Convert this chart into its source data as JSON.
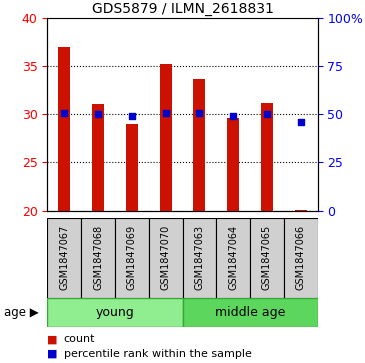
{
  "title": "GDS5879 / ILMN_2618831",
  "samples": [
    "GSM1847067",
    "GSM1847068",
    "GSM1847069",
    "GSM1847070",
    "GSM1847063",
    "GSM1847064",
    "GSM1847065",
    "GSM1847066"
  ],
  "count_values": [
    37.0,
    31.1,
    29.0,
    35.2,
    33.7,
    29.6,
    31.2,
    20.1
  ],
  "percentile_values": [
    50.5,
    50.0,
    49.0,
    50.5,
    50.5,
    49.0,
    50.0,
    46.0
  ],
  "ylim_left": [
    20,
    40
  ],
  "ylim_right": [
    0,
    100
  ],
  "yticks_left": [
    20,
    25,
    30,
    35,
    40
  ],
  "yticks_right": [
    0,
    25,
    50,
    75,
    100
  ],
  "bar_color": "#cc1100",
  "dot_color": "#0000cc",
  "bar_width": 0.35,
  "bar_bottom": 20,
  "group_young_indices": [
    0,
    1,
    2,
    3
  ],
  "group_middle_indices": [
    4,
    5,
    6,
    7
  ],
  "group_young_label": "young",
  "group_middle_label": "middle age",
  "group_color_young": "#90ee90",
  "group_color_middle": "#5cd65c",
  "sample_box_color": "#d0d0d0",
  "age_label": "age",
  "legend_count_label": "count",
  "legend_pct_label": "percentile rank within the sample",
  "legend_count_color": "#cc1100",
  "legend_pct_color": "#0000cc"
}
